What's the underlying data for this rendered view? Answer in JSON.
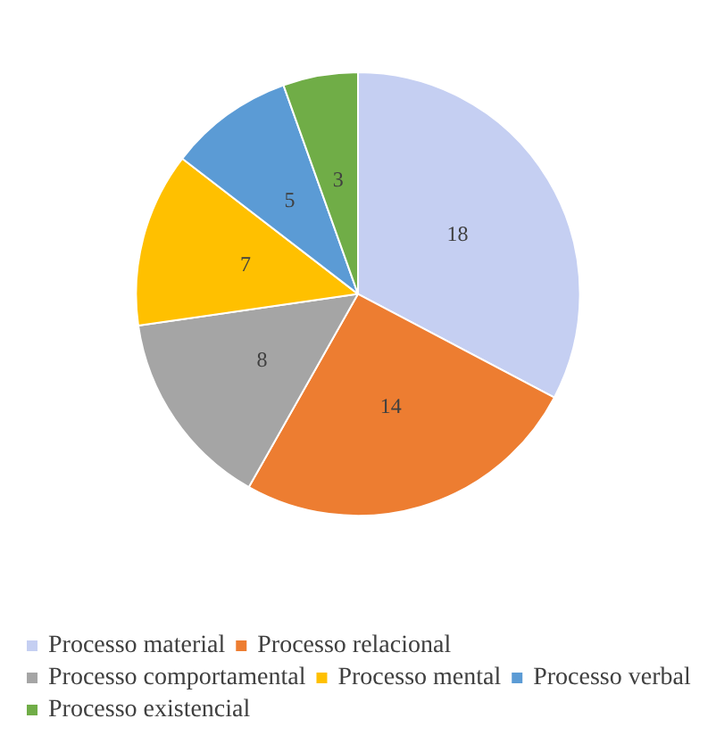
{
  "chart_data": {
    "type": "pie",
    "categories": [
      "Processo material",
      "Processo relacional",
      "Processo comportamental",
      "Processo mental",
      "Processo verbal",
      "Processo existencial"
    ],
    "values": [
      18,
      14,
      8,
      7,
      5,
      3
    ],
    "colors": [
      "#c5cff2",
      "#ed7d31",
      "#a5a5a5",
      "#ffc000",
      "#5b9bd5",
      "#70ad47"
    ],
    "data_labels": true,
    "legend": "bottom"
  }
}
